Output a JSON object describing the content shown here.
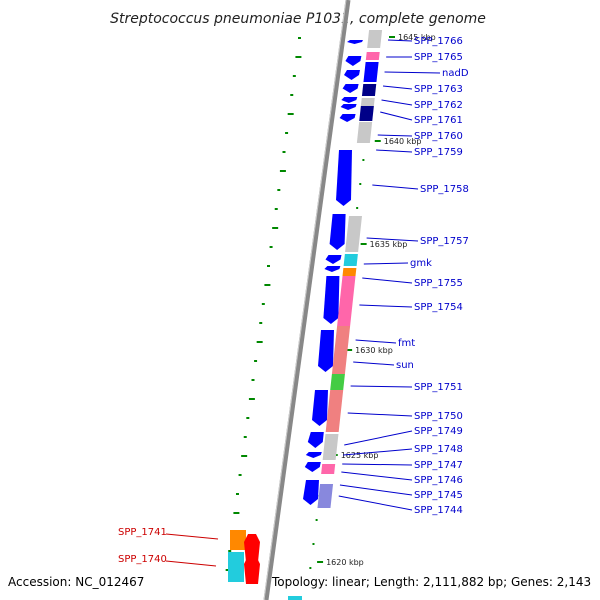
{
  "title": "Streptococcus pneumoniae P1031, complete genome",
  "footer": {
    "accession": "Accession: NC_012467",
    "summary": "Topology: linear; Length: 2,111,882 bp; Genes: 2,143"
  },
  "colors": {
    "backbone": "#888888",
    "blue_gene": "#0000ff",
    "blue_label": "#0000cc",
    "red_label": "#cc0000",
    "tick_green": "#008800",
    "gray_band": "#c8c8c8",
    "pink_band": "#ff66aa",
    "salmon_band": "#f08080",
    "cyan_band": "#22ccdd",
    "orange_band": "#ff8800",
    "green_band": "#44cc44",
    "navy_band": "#000088",
    "purple_band": "#8888dd"
  },
  "scale_markers": [
    "1645 kbp",
    "1640 kbp",
    "1635 kbp",
    "1630 kbp",
    "1625 kbp",
    "1620 kbp"
  ],
  "gene_labels": [
    "SPP_1766",
    "SPP_1765",
    "nadD",
    "SPP_1763",
    "SPP_1762",
    "SPP_1761",
    "SPP_1760",
    "SPP_1759",
    "SPP_1758",
    "SPP_1757",
    "gmk",
    "SPP_1755",
    "SPP_1754",
    "fmt",
    "sun",
    "SPP_1751",
    "SPP_1750",
    "SPP_1749",
    "SPP_1748",
    "SPP_1747",
    "SPP_1746",
    "SPP_1745",
    "SPP_1744"
  ],
  "highlighted_genes": [
    "SPP_1741",
    "SPP_1740"
  ]
}
